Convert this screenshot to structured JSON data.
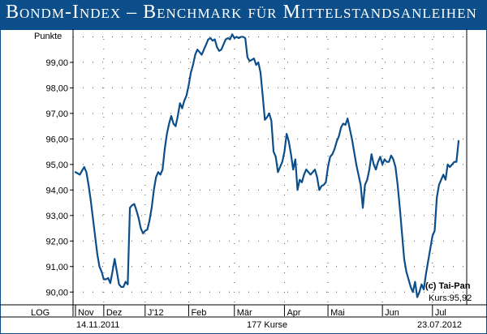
{
  "header": {
    "title": "Bondm-Index – Benchmark für Mittelstandsanleihen"
  },
  "chart_data": {
    "type": "line",
    "ylabel": "Punkte",
    "ylim": [
      89.5,
      100.3
    ],
    "yticks": [
      "90,00",
      "91,00",
      "92,00",
      "93,00",
      "94,00",
      "95,00",
      "96,00",
      "97,00",
      "98,00",
      "99,00"
    ],
    "ytick_values": [
      90,
      91,
      92,
      93,
      94,
      95,
      96,
      97,
      98,
      99
    ],
    "x_count": 177,
    "months": [
      "Nov",
      "Dez",
      "J'12",
      "Feb",
      "Mär",
      "Apr",
      "Mai",
      "Jun",
      "Jul"
    ],
    "month_starts": [
      0,
      13,
      32,
      52,
      73,
      96,
      116,
      141,
      164
    ],
    "scale_label": "LOG",
    "date_start": "14.11.2011",
    "date_end": "23.07.2012",
    "count_label": "177 Kurse",
    "copyright": "(c) Tai-Pan",
    "last_value": "Kurs:95,92",
    "grid": true,
    "legend": "none",
    "series": [
      {
        "color": "#0c4e8a",
        "values": [
          94.7,
          94.65,
          94.6,
          94.75,
          94.9,
          94.7,
          94.2,
          93.6,
          92.9,
          92.2,
          91.5,
          91.0,
          90.8,
          90.5,
          90.5,
          90.55,
          90.35,
          90.8,
          91.3,
          90.8,
          90.3,
          90.2,
          90.2,
          90.4,
          90.3,
          93.3,
          93.4,
          93.45,
          93.2,
          92.9,
          92.5,
          92.3,
          92.4,
          92.45,
          92.8,
          93.3,
          94.0,
          94.5,
          94.7,
          94.6,
          94.8,
          95.6,
          96.2,
          96.6,
          96.9,
          96.6,
          96.5,
          96.9,
          97.4,
          97.2,
          97.5,
          97.7,
          98.1,
          98.6,
          98.9,
          99.3,
          99.5,
          99.4,
          99.3,
          99.5,
          99.7,
          99.9,
          99.95,
          99.85,
          99.9,
          99.6,
          99.45,
          99.5,
          99.7,
          99.9,
          99.95,
          99.9,
          100.1,
          99.95,
          100.0,
          99.95,
          100.0,
          100.0,
          99.95,
          99.2,
          99.05,
          99.1,
          99.15,
          98.9,
          99.0,
          98.6,
          97.7,
          96.75,
          96.85,
          97.0,
          96.7,
          95.5,
          95.3,
          94.7,
          94.9,
          95.1,
          95.5,
          96.2,
          95.9,
          95.4,
          94.8,
          95.2,
          94.0,
          94.4,
          94.3,
          94.6,
          94.8,
          94.7,
          94.6,
          94.7,
          94.8,
          94.5,
          94.0,
          94.15,
          94.2,
          94.3,
          94.9,
          95.3,
          95.4,
          95.6,
          95.9,
          96.1,
          96.45,
          96.6,
          96.55,
          96.8,
          96.4,
          96.0,
          95.5,
          95.0,
          94.6,
          94.2,
          93.3,
          94.2,
          94.4,
          94.8,
          95.4,
          95.0,
          94.8,
          95.1,
          95.3,
          95.0,
          95.2,
          95.1,
          95.1,
          95.35,
          95.2,
          94.9,
          94.2,
          93.3,
          92.3,
          91.3,
          90.8,
          90.5,
          90.2,
          90.0,
          90.4,
          89.8,
          90.0,
          90.3,
          90.1,
          90.7,
          91.2,
          91.7,
          92.2,
          92.4,
          93.7,
          94.2,
          94.4,
          94.6,
          94.4,
          95.0,
          94.9,
          95.0,
          95.1,
          95.1,
          95.92
        ]
      }
    ]
  }
}
